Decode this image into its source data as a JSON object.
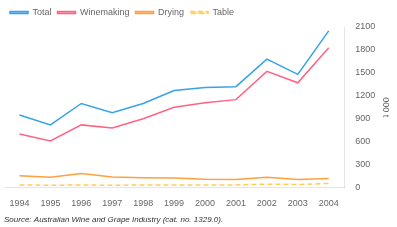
{
  "chart_data": {
    "type": "line",
    "x": [
      1994,
      1995,
      1996,
      1997,
      1998,
      1999,
      2000,
      2001,
      2002,
      2003,
      2004
    ],
    "series": [
      {
        "name": "Total",
        "values": [
          950,
          820,
          1100,
          980,
          1100,
          1270,
          1310,
          1320,
          1680,
          1480,
          2050
        ]
      },
      {
        "name": "Winemaking",
        "values": [
          700,
          610,
          820,
          780,
          900,
          1050,
          1110,
          1150,
          1520,
          1370,
          1830
        ]
      },
      {
        "name": "Drying",
        "values": [
          155,
          135,
          185,
          140,
          130,
          125,
          110,
          105,
          135,
          105,
          120
        ]
      },
      {
        "name": "Table",
        "values": [
          35,
          30,
          35,
          30,
          35,
          35,
          35,
          35,
          45,
          40,
          55
        ],
        "line_style": "dashed"
      }
    ],
    "xlim": [
      1993.5,
      2004.5
    ],
    "xticks": [
      1994,
      1995,
      1996,
      1997,
      1998,
      1999,
      2000,
      2001,
      2002,
      2003,
      2004
    ],
    "ylim": [
      0,
      2100
    ],
    "yticks": [
      0,
      300,
      600,
      900,
      1200,
      1500,
      1800,
      2100
    ],
    "ylabel": "000 t",
    "annotations": [
      "Source: Australian Wine and Grape Industry (cat. no. 1329.0)."
    ],
    "legend": "top",
    "grid": false
  }
}
